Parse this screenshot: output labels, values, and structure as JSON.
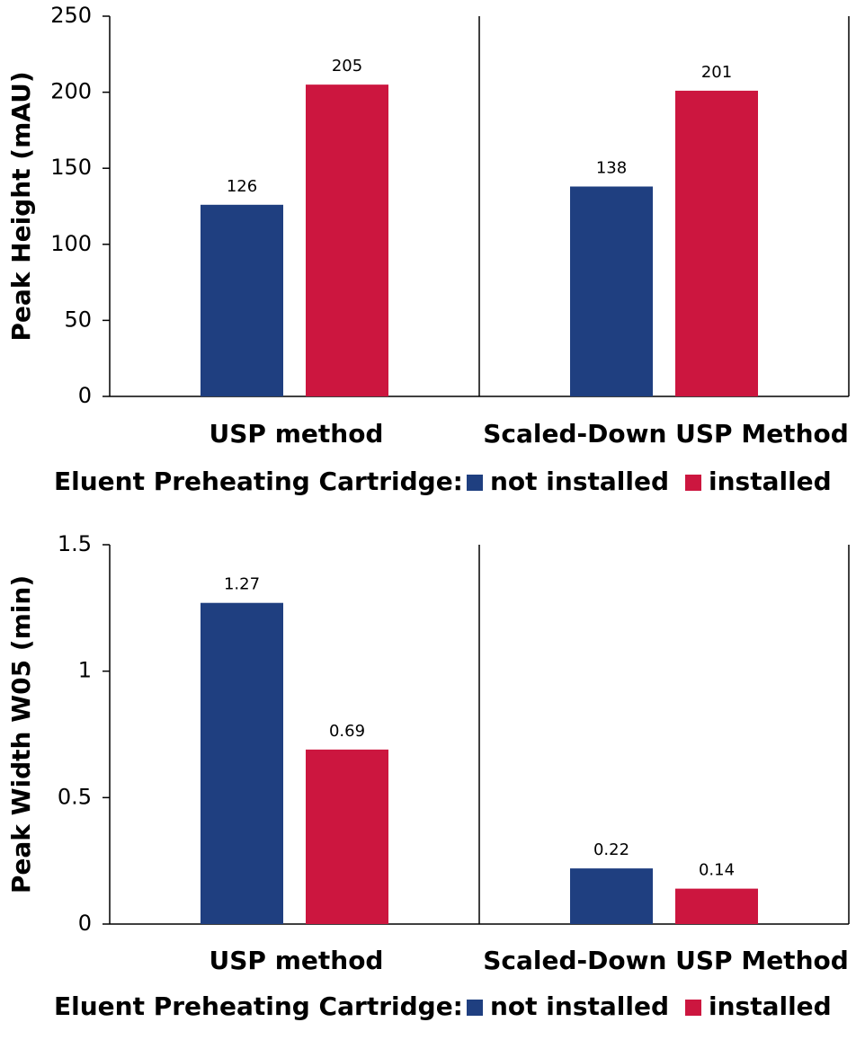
{
  "chart_data": [
    {
      "type": "bar",
      "y_label": "Peak Height (mAU)",
      "categories": [
        "USP method",
        "Scaled-Down USP Method"
      ],
      "legend_title": "Eluent Preheating Cartridge:",
      "series": [
        {
          "name": "not installed",
          "color": "#1f3f80",
          "values": [
            126,
            138
          ]
        },
        {
          "name": "installed",
          "color": "#cc163f",
          "values": [
            205,
            201
          ]
        }
      ],
      "ylim": [
        0,
        250
      ],
      "yticks": [
        0,
        50,
        100,
        150,
        200,
        250
      ]
    },
    {
      "type": "bar",
      "y_label": "Peak Width W05 (min)",
      "categories": [
        "USP method",
        "Scaled-Down USP Method"
      ],
      "legend_title": "Eluent Preheating Cartridge:",
      "series": [
        {
          "name": "not installed",
          "color": "#1f3f80",
          "values": [
            1.27,
            0.22
          ]
        },
        {
          "name": "installed",
          "color": "#cc163f",
          "values": [
            0.69,
            0.14
          ]
        }
      ],
      "ylim": [
        0,
        1.5
      ],
      "yticks": [
        0,
        0.5,
        1,
        1.5
      ]
    }
  ]
}
